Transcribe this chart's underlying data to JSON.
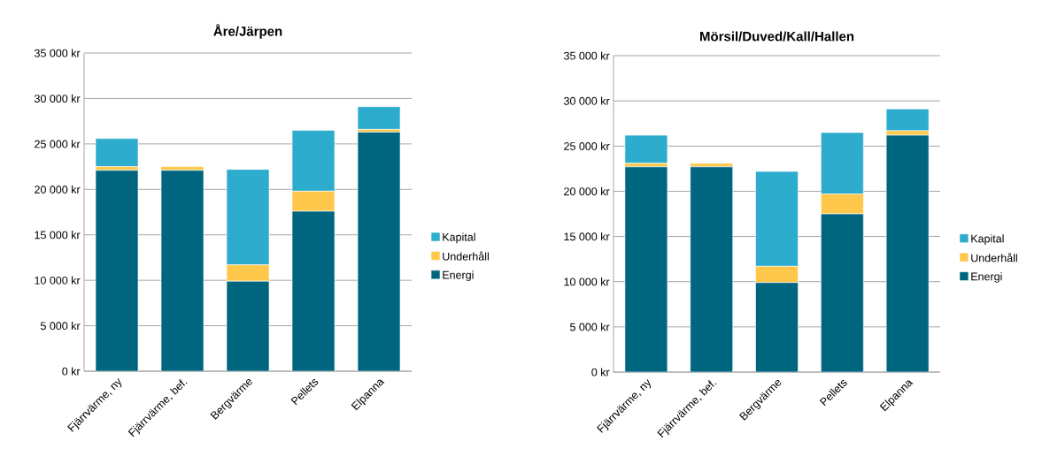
{
  "chart_data": [
    {
      "type": "bar",
      "title": "Åre/Järpen",
      "stacked": true,
      "categories": [
        "Fjärrvärme, ny",
        "Fjärrvärme, bef.",
        "Bergvärme",
        "Pellets",
        "Elpanna"
      ],
      "series": [
        {
          "name": "Energi",
          "color": "#006680",
          "values": [
            22100,
            22100,
            9900,
            17600,
            26300
          ]
        },
        {
          "name": "Underhåll",
          "color": "#ffc84a",
          "values": [
            400,
            400,
            1800,
            2200,
            300
          ]
        },
        {
          "name": "Kapital",
          "color": "#2eaccd",
          "values": [
            3100,
            0,
            10500,
            6700,
            2500
          ]
        }
      ],
      "ylim": [
        0,
        35000
      ],
      "yticks": [
        {
          "value": 0,
          "label": "0 kr"
        },
        {
          "value": 5000,
          "label": "5 000 kr"
        },
        {
          "value": 10000,
          "label": "10 000 kr"
        },
        {
          "value": 15000,
          "label": "15 000 kr"
        },
        {
          "value": 20000,
          "label": "20 000 kr"
        },
        {
          "value": 25000,
          "label": "25 000 kr"
        },
        {
          "value": 30000,
          "label": "30 000 kr"
        },
        {
          "value": 35000,
          "label": "35 000 kr"
        }
      ],
      "grid": "y",
      "legend": "right"
    },
    {
      "type": "bar",
      "title": "Mörsil/Duved/Kall/Hallen",
      "stacked": true,
      "categories": [
        "Fjärrvärme, ny",
        "Fjärrvärme, bef.",
        "Bergvärme",
        "Pellets",
        "Elpanna"
      ],
      "series": [
        {
          "name": "Energi",
          "color": "#006680",
          "values": [
            22700,
            22700,
            9900,
            17500,
            26200
          ]
        },
        {
          "name": "Underhåll",
          "color": "#ffc84a",
          "values": [
            400,
            400,
            1800,
            2200,
            500
          ]
        },
        {
          "name": "Kapital",
          "color": "#2eaccd",
          "values": [
            3100,
            0,
            10500,
            6800,
            2400
          ]
        }
      ],
      "ylim": [
        0,
        35000
      ],
      "yticks": [
        {
          "value": 0,
          "label": "0 kr"
        },
        {
          "value": 5000,
          "label": "5 000 kr"
        },
        {
          "value": 10000,
          "label": "10 000 kr"
        },
        {
          "value": 15000,
          "label": "15 000 kr"
        },
        {
          "value": 20000,
          "label": "20 000 kr"
        },
        {
          "value": 25000,
          "label": "25 000 kr"
        },
        {
          "value": 30000,
          "label": "30 000 kr"
        },
        {
          "value": 35000,
          "label": "35 000 kr"
        }
      ],
      "grid": "y",
      "legend": "right"
    }
  ]
}
